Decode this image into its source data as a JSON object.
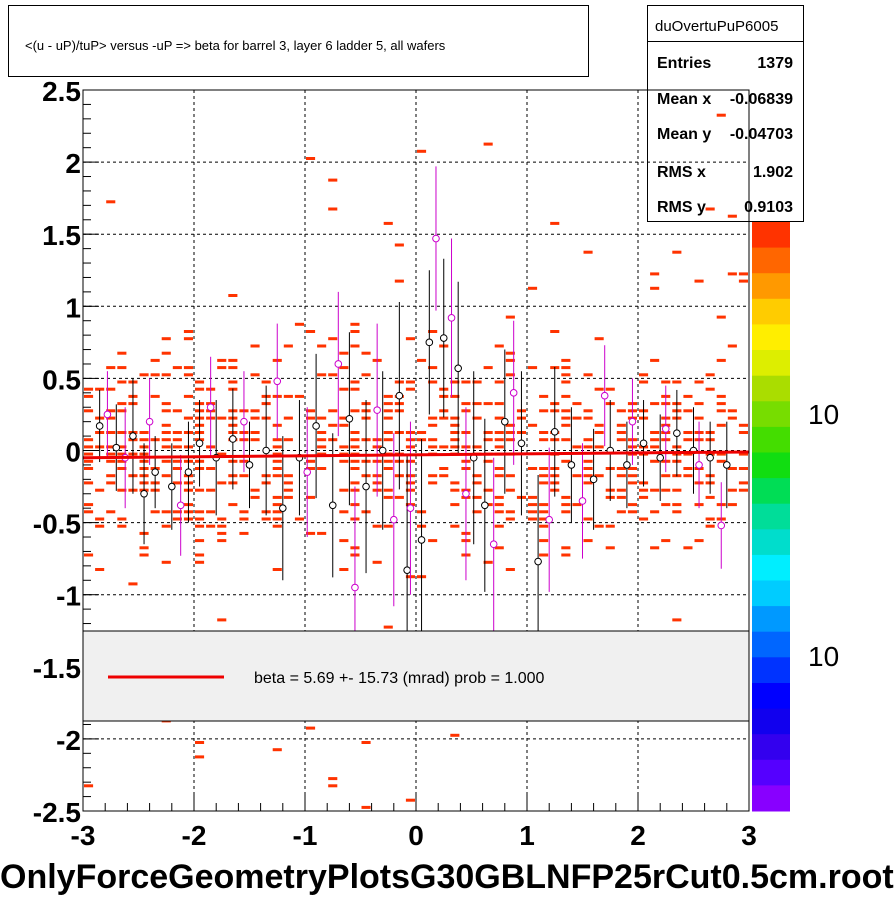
{
  "title": "<(u - uP)/tuP> versus  -uP => beta for barrel 3, layer 6 ladder 5, all wafers",
  "stats": {
    "name": "duOvertuPuP6005",
    "rows": [
      {
        "label": "Entries",
        "value": "1379"
      },
      {
        "label": "Mean x",
        "value": "-0.06839"
      },
      {
        "label": "Mean y",
        "value": "-0.04703"
      },
      {
        "label": "RMS x",
        "value": "1.902"
      },
      {
        "label": "RMS y",
        "value": "0.9103"
      }
    ]
  },
  "legend": {
    "text": "beta =    5.69 +- 15.73 (mrad) prob = 1.000",
    "line_color": "#ee0000"
  },
  "xaxis_title": "OnlyForceGeometryPlotsG30GBLNFP25rCut0.5cm.root",
  "colorbar_labels": [
    "10",
    "10"
  ],
  "colors": {
    "hist": "#ff3300",
    "fit": "#ee0000",
    "profile_black": "#000000",
    "profile_magenta": "#cc00cc"
  },
  "chart_data": {
    "type": "scatter",
    "xlim": [
      -3,
      3
    ],
    "ylim": [
      -2.5,
      2.5
    ],
    "xticks": [
      "-3",
      "-2",
      "-1",
      "0",
      "1",
      "2",
      "3"
    ],
    "yticks": [
      "2.5",
      "2",
      "1.5",
      "1",
      "0.5",
      "0",
      "-0.5",
      "-1",
      "-1.5",
      "-2",
      "-2.5"
    ],
    "grid": true,
    "fit_line": {
      "y_at_xmin": -0.05,
      "y_at_xmax": -0.01
    },
    "profile_black": [
      {
        "x": -2.85,
        "y": 0.17,
        "err": 0.25
      },
      {
        "x": -2.7,
        "y": 0.02,
        "err": 0.3
      },
      {
        "x": -2.55,
        "y": 0.1,
        "err": 0.4
      },
      {
        "x": -2.45,
        "y": -0.3,
        "err": 0.35
      },
      {
        "x": -2.35,
        "y": -0.15,
        "err": 0.25
      },
      {
        "x": -2.2,
        "y": -0.25,
        "err": 0.3
      },
      {
        "x": -2.05,
        "y": -0.15,
        "err": 0.35
      },
      {
        "x": -1.95,
        "y": 0.05,
        "err": 0.3
      },
      {
        "x": -1.8,
        "y": -0.05,
        "err": 0.4
      },
      {
        "x": -1.65,
        "y": 0.08,
        "err": 0.35
      },
      {
        "x": -1.5,
        "y": -0.1,
        "err": 0.3
      },
      {
        "x": -1.35,
        "y": 0.0,
        "err": 0.45
      },
      {
        "x": -1.2,
        "y": -0.4,
        "err": 0.5
      },
      {
        "x": -1.05,
        "y": -0.05,
        "err": 0.4
      },
      {
        "x": -0.9,
        "y": 0.17,
        "err": 0.5
      },
      {
        "x": -0.75,
        "y": -0.38,
        "err": 0.5
      },
      {
        "x": -0.6,
        "y": 0.22,
        "err": 0.6
      },
      {
        "x": -0.45,
        "y": -0.25,
        "err": 0.6
      },
      {
        "x": -0.3,
        "y": 0.0,
        "err": 0.55
      },
      {
        "x": -0.15,
        "y": 0.38,
        "err": 0.65
      },
      {
        "x": -0.08,
        "y": -0.83,
        "err": 0.8
      },
      {
        "x": 0.05,
        "y": -0.62,
        "err": 0.7
      },
      {
        "x": 0.12,
        "y": 0.75,
        "err": 0.5
      },
      {
        "x": 0.25,
        "y": 0.78,
        "err": 0.55
      },
      {
        "x": 0.38,
        "y": 0.57,
        "err": 0.6
      },
      {
        "x": 0.52,
        "y": -0.05,
        "err": 0.6
      },
      {
        "x": 0.62,
        "y": -0.38,
        "err": 0.6
      },
      {
        "x": 0.8,
        "y": 0.2,
        "err": 0.5
      },
      {
        "x": 0.95,
        "y": 0.05,
        "err": 0.5
      },
      {
        "x": 1.1,
        "y": -0.77,
        "err": 0.6
      },
      {
        "x": 1.25,
        "y": 0.13,
        "err": 0.45
      },
      {
        "x": 1.4,
        "y": -0.1,
        "err": 0.4
      },
      {
        "x": 1.6,
        "y": -0.2,
        "err": 0.35
      },
      {
        "x": 1.75,
        "y": 0.0,
        "err": 0.35
      },
      {
        "x": 1.9,
        "y": -0.1,
        "err": 0.3
      },
      {
        "x": 2.05,
        "y": 0.05,
        "err": 0.3
      },
      {
        "x": 2.2,
        "y": -0.05,
        "err": 0.3
      },
      {
        "x": 2.35,
        "y": 0.12,
        "err": 0.3
      },
      {
        "x": 2.5,
        "y": 0.0,
        "err": 0.3
      },
      {
        "x": 2.65,
        "y": -0.05,
        "err": 0.25
      },
      {
        "x": 2.8,
        "y": -0.1,
        "err": 0.3
      }
    ],
    "profile_magenta": [
      {
        "x": -2.78,
        "y": 0.25,
        "err": 0.3
      },
      {
        "x": -2.62,
        "y": -0.05,
        "err": 0.35
      },
      {
        "x": -2.4,
        "y": 0.2,
        "err": 0.3
      },
      {
        "x": -2.12,
        "y": -0.38,
        "err": 0.35
      },
      {
        "x": -1.85,
        "y": 0.3,
        "err": 0.35
      },
      {
        "x": -1.55,
        "y": 0.2,
        "err": 0.35
      },
      {
        "x": -1.25,
        "y": 0.48,
        "err": 0.4
      },
      {
        "x": -0.98,
        "y": -0.15,
        "err": 0.45
      },
      {
        "x": -0.7,
        "y": 0.6,
        "err": 0.5
      },
      {
        "x": -0.55,
        "y": -0.95,
        "err": 0.7
      },
      {
        "x": -0.35,
        "y": 0.28,
        "err": 0.6
      },
      {
        "x": -0.2,
        "y": -0.48,
        "err": 0.6
      },
      {
        "x": -0.05,
        "y": -0.4,
        "err": 0.6
      },
      {
        "x": 0.18,
        "y": 1.47,
        "err": 0.5
      },
      {
        "x": 0.32,
        "y": 0.92,
        "err": 0.55
      },
      {
        "x": 0.45,
        "y": -0.3,
        "err": 0.6
      },
      {
        "x": 0.7,
        "y": -0.65,
        "err": 0.6
      },
      {
        "x": 0.88,
        "y": 0.4,
        "err": 0.5
      },
      {
        "x": 1.2,
        "y": -0.48,
        "err": 0.5
      },
      {
        "x": 1.5,
        "y": -0.35,
        "err": 0.4
      },
      {
        "x": 1.7,
        "y": 0.38,
        "err": 0.35
      },
      {
        "x": 1.95,
        "y": 0.2,
        "err": 0.3
      },
      {
        "x": 2.25,
        "y": 0.15,
        "err": 0.3
      },
      {
        "x": 2.55,
        "y": -0.1,
        "err": 0.3
      },
      {
        "x": 2.75,
        "y": -0.52,
        "err": 0.3
      }
    ]
  }
}
